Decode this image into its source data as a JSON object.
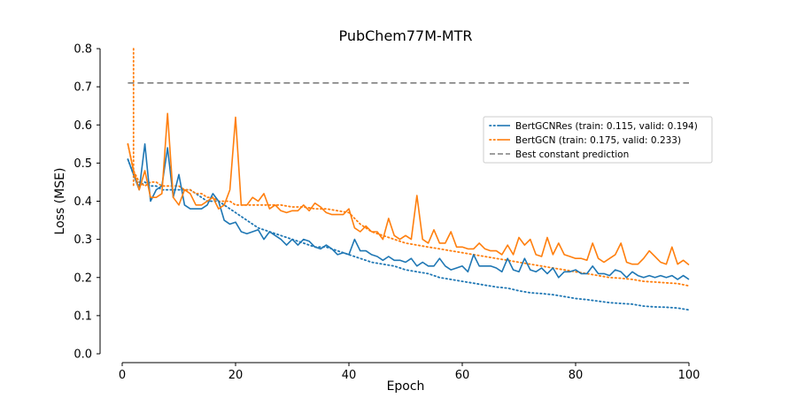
{
  "chart_data": {
    "type": "line",
    "title": "PubChem77M-MTR",
    "xlabel": "Epoch",
    "ylabel": "Loss (MSE)",
    "xlim": [
      0,
      100
    ],
    "ylim": [
      0,
      0.8
    ],
    "xticks": [
      0,
      20,
      40,
      60,
      80,
      100
    ],
    "yticks": [
      0.0,
      0.1,
      0.2,
      0.3,
      0.4,
      0.5,
      0.6,
      0.7,
      0.8
    ],
    "xtick_labels": [
      "0",
      "20",
      "40",
      "60",
      "80",
      "100"
    ],
    "ytick_labels": [
      "0.0",
      "0.1",
      "0.2",
      "0.3",
      "0.4",
      "0.5",
      "0.6",
      "0.7",
      "0.8"
    ],
    "legend_position": "center-right",
    "grid": false,
    "legend": [
      {
        "label": "BertGCNRes (train: 0.115, valid: 0.194)",
        "color": "#1f77b4",
        "style": "dotted+solid"
      },
      {
        "label": "BertGCN (train: 0.175, valid: 0.233)",
        "color": "#ff7f0e",
        "style": "dotted+solid"
      },
      {
        "label": "Best constant prediction",
        "color": "#7f7f7f",
        "style": "dashed"
      }
    ],
    "series": [
      {
        "name": "BertGCNRes (train: 0.115, valid: 0.194)",
        "role": "train",
        "color": "#1f77b4",
        "dash": "dotted",
        "x": [
          1,
          2,
          3,
          4,
          5,
          6,
          7,
          8,
          9,
          10,
          11,
          12,
          13,
          14,
          15,
          16,
          17,
          18,
          19,
          20,
          22,
          24,
          26,
          28,
          30,
          32,
          34,
          36,
          38,
          40,
          42,
          44,
          46,
          48,
          50,
          52,
          54,
          56,
          58,
          60,
          62,
          64,
          66,
          68,
          70,
          72,
          74,
          76,
          78,
          80,
          82,
          84,
          86,
          88,
          90,
          92,
          94,
          96,
          98,
          100
        ],
        "y": [
          0.51,
          0.47,
          0.44,
          0.45,
          0.44,
          0.44,
          0.43,
          0.43,
          0.43,
          0.43,
          0.43,
          0.43,
          0.42,
          0.41,
          0.4,
          0.4,
          0.4,
          0.39,
          0.38,
          0.37,
          0.35,
          0.33,
          0.32,
          0.31,
          0.3,
          0.29,
          0.28,
          0.28,
          0.27,
          0.26,
          0.25,
          0.24,
          0.235,
          0.23,
          0.22,
          0.215,
          0.21,
          0.2,
          0.195,
          0.19,
          0.185,
          0.18,
          0.175,
          0.172,
          0.165,
          0.16,
          0.158,
          0.155,
          0.15,
          0.145,
          0.142,
          0.138,
          0.134,
          0.132,
          0.13,
          0.125,
          0.123,
          0.122,
          0.12,
          0.115
        ]
      },
      {
        "name": "BertGCN (train: 0.175, valid: 0.233)",
        "role": "train",
        "color": "#ff7f0e",
        "dash": "dotted",
        "x": [
          1,
          2,
          3,
          4,
          5,
          6,
          7,
          8,
          9,
          10,
          11,
          12,
          13,
          14,
          15,
          16,
          17,
          18,
          19,
          20,
          22,
          24,
          26,
          28,
          30,
          32,
          34,
          36,
          38,
          40,
          42,
          44,
          46,
          48,
          50,
          52,
          54,
          56,
          58,
          60,
          62,
          64,
          66,
          68,
          70,
          72,
          74,
          76,
          78,
          80,
          82,
          84,
          86,
          88,
          90,
          92,
          94,
          96,
          98,
          100
        ],
        "y": [
          0.55,
          0.48,
          0.45,
          0.44,
          0.45,
          0.45,
          0.44,
          0.44,
          0.44,
          0.44,
          0.43,
          0.43,
          0.42,
          0.42,
          0.41,
          0.41,
          0.4,
          0.4,
          0.4,
          0.39,
          0.39,
          0.39,
          0.39,
          0.39,
          0.385,
          0.385,
          0.38,
          0.38,
          0.375,
          0.37,
          0.34,
          0.32,
          0.31,
          0.3,
          0.29,
          0.285,
          0.28,
          0.275,
          0.27,
          0.265,
          0.26,
          0.255,
          0.25,
          0.245,
          0.24,
          0.235,
          0.23,
          0.225,
          0.22,
          0.215,
          0.21,
          0.205,
          0.2,
          0.198,
          0.195,
          0.19,
          0.188,
          0.186,
          0.184,
          0.178
        ]
      },
      {
        "name": "BertGCNRes (train: 0.115, valid: 0.194)",
        "role": "valid",
        "color": "#1f77b4",
        "dash": "solid",
        "x": [
          1,
          2,
          3,
          4,
          5,
          6,
          7,
          8,
          9,
          10,
          11,
          12,
          13,
          14,
          15,
          16,
          17,
          18,
          19,
          20,
          21,
          22,
          23,
          24,
          25,
          26,
          27,
          28,
          29,
          30,
          31,
          32,
          33,
          34,
          35,
          36,
          37,
          38,
          39,
          40,
          41,
          42,
          43,
          44,
          45,
          46,
          47,
          48,
          49,
          50,
          51,
          52,
          53,
          54,
          55,
          56,
          57,
          58,
          59,
          60,
          61,
          62,
          63,
          64,
          65,
          66,
          67,
          68,
          69,
          70,
          71,
          72,
          73,
          74,
          75,
          76,
          77,
          78,
          79,
          80,
          81,
          82,
          83,
          84,
          85,
          86,
          87,
          88,
          89,
          90,
          91,
          92,
          93,
          94,
          95,
          96,
          97,
          98,
          99,
          100
        ],
        "y": [
          0.51,
          0.47,
          0.43,
          0.55,
          0.4,
          0.43,
          0.44,
          0.54,
          0.41,
          0.47,
          0.39,
          0.38,
          0.38,
          0.38,
          0.39,
          0.42,
          0.4,
          0.35,
          0.34,
          0.345,
          0.32,
          0.315,
          0.32,
          0.325,
          0.3,
          0.32,
          0.31,
          0.3,
          0.285,
          0.3,
          0.285,
          0.3,
          0.295,
          0.28,
          0.275,
          0.285,
          0.275,
          0.26,
          0.265,
          0.26,
          0.3,
          0.27,
          0.27,
          0.26,
          0.255,
          0.245,
          0.255,
          0.245,
          0.245,
          0.24,
          0.25,
          0.23,
          0.24,
          0.23,
          0.23,
          0.25,
          0.23,
          0.22,
          0.225,
          0.23,
          0.215,
          0.26,
          0.23,
          0.23,
          0.23,
          0.225,
          0.215,
          0.25,
          0.22,
          0.215,
          0.25,
          0.22,
          0.215,
          0.225,
          0.21,
          0.225,
          0.2,
          0.215,
          0.215,
          0.22,
          0.21,
          0.21,
          0.23,
          0.21,
          0.21,
          0.205,
          0.22,
          0.215,
          0.2,
          0.215,
          0.205,
          0.2,
          0.205,
          0.2,
          0.205,
          0.2,
          0.205,
          0.195,
          0.205,
          0.195
        ]
      },
      {
        "name": "BertGCN (train: 0.175, valid: 0.233)",
        "role": "valid",
        "color": "#ff7f0e",
        "dash": "solid",
        "x": [
          1,
          2,
          3,
          4,
          5,
          6,
          7,
          8,
          9,
          10,
          11,
          12,
          13,
          14,
          15,
          16,
          17,
          18,
          19,
          20,
          21,
          22,
          23,
          24,
          25,
          26,
          27,
          28,
          29,
          30,
          31,
          32,
          33,
          34,
          35,
          36,
          37,
          38,
          39,
          40,
          41,
          42,
          43,
          44,
          45,
          46,
          47,
          48,
          49,
          50,
          51,
          52,
          53,
          54,
          55,
          56,
          57,
          58,
          59,
          60,
          61,
          62,
          63,
          64,
          65,
          66,
          67,
          68,
          69,
          70,
          71,
          72,
          73,
          74,
          75,
          76,
          77,
          78,
          79,
          80,
          81,
          82,
          83,
          84,
          85,
          86,
          87,
          88,
          89,
          90,
          91,
          92,
          93,
          94,
          95,
          96,
          97,
          98,
          99,
          100
        ],
        "y": [
          0.55,
          0.48,
          0.43,
          0.48,
          0.41,
          0.41,
          0.42,
          0.63,
          0.41,
          0.39,
          0.43,
          0.42,
          0.39,
          0.39,
          0.4,
          0.41,
          0.38,
          0.39,
          0.43,
          0.62,
          0.39,
          0.39,
          0.41,
          0.4,
          0.42,
          0.38,
          0.39,
          0.375,
          0.37,
          0.375,
          0.375,
          0.39,
          0.375,
          0.395,
          0.385,
          0.37,
          0.365,
          0.365,
          0.365,
          0.38,
          0.33,
          0.32,
          0.335,
          0.32,
          0.32,
          0.3,
          0.355,
          0.31,
          0.3,
          0.31,
          0.3,
          0.415,
          0.3,
          0.29,
          0.325,
          0.29,
          0.29,
          0.32,
          0.28,
          0.28,
          0.275,
          0.275,
          0.29,
          0.275,
          0.27,
          0.27,
          0.26,
          0.285,
          0.26,
          0.305,
          0.285,
          0.3,
          0.26,
          0.255,
          0.305,
          0.26,
          0.29,
          0.26,
          0.255,
          0.25,
          0.25,
          0.245,
          0.29,
          0.25,
          0.24,
          0.25,
          0.26,
          0.29,
          0.24,
          0.235,
          0.235,
          0.25,
          0.27,
          0.255,
          0.24,
          0.235,
          0.28,
          0.235,
          0.245,
          0.233
        ]
      },
      {
        "name": "Best constant prediction",
        "role": "baseline",
        "color": "#7f7f7f",
        "dash": "dashed",
        "x": [
          1,
          100
        ],
        "y": [
          0.71,
          0.71
        ]
      }
    ],
    "spike": {
      "color": "#ff7f0e",
      "x": [
        2,
        2
      ],
      "y": [
        0.8,
        0.44
      ]
    }
  }
}
